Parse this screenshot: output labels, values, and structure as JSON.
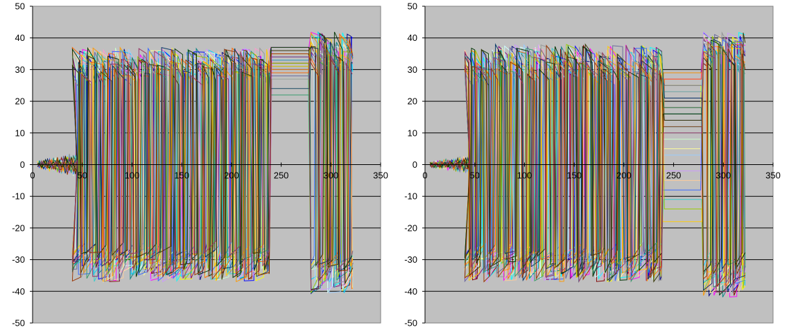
{
  "colors": {
    "plot_background": "#c0c0c0",
    "gridline": "#000000",
    "axis": "#000000",
    "series_palette": [
      "#00007f",
      "#ff00ff",
      "#ffff00",
      "#00ffff",
      "#7f007f",
      "#7f0000",
      "#007f7f",
      "#0000ff",
      "#00ccff",
      "#ccffff",
      "#ccffcc",
      "#ffff99",
      "#99ccff",
      "#ff99cc",
      "#cc99ff",
      "#ffcc99",
      "#3366ff",
      "#33cccc",
      "#99cc00",
      "#ffcc00",
      "#ff9900",
      "#ff6600",
      "#666699",
      "#969696",
      "#003366",
      "#339966",
      "#003300",
      "#333300",
      "#993300",
      "#993366",
      "#333399",
      "#333333"
    ]
  },
  "chart_data": [
    {
      "type": "line",
      "xlim": [
        0,
        350
      ],
      "ylim": [
        -50,
        50
      ],
      "x_ticks": [
        "0",
        "50",
        "100",
        "150",
        "200",
        "250",
        "300",
        "350"
      ],
      "y_ticks": [
        "50",
        "40",
        "30",
        "20",
        "10",
        "0",
        "-10",
        "-20",
        "-30",
        "-40",
        "-50"
      ],
      "grid": "horizontal",
      "legend": "none",
      "n_series": 30,
      "x_end": 322,
      "segments": [
        {
          "from": 0,
          "to": 40,
          "pattern": "small_oscillation",
          "amplitude": 4
        },
        {
          "from": 40,
          "to": 238,
          "pattern": "dense_oscillation",
          "range": [
            -37,
            37
          ]
        },
        {
          "from": 238,
          "to": 280,
          "pattern": "flat_levels",
          "levels": [
            37,
            36,
            35,
            34,
            33,
            32,
            31,
            30,
            29,
            28,
            27,
            24,
            22
          ]
        },
        {
          "from": 280,
          "to": 322,
          "pattern": "dense_oscillation",
          "range": [
            -41,
            42
          ]
        }
      ]
    },
    {
      "type": "line",
      "xlim": [
        0,
        350
      ],
      "ylim": [
        -50,
        50
      ],
      "x_ticks": [
        "0",
        "50",
        "100",
        "150",
        "200",
        "250",
        "300",
        "350"
      ],
      "y_ticks": [
        "50",
        "40",
        "30",
        "20",
        "10",
        "0",
        "-10",
        "-20",
        "-30",
        "-40",
        "-50"
      ],
      "grid": "horizontal",
      "legend": "none",
      "n_series": 30,
      "x_end": 322,
      "segments": [
        {
          "from": 0,
          "to": 40,
          "pattern": "small_oscillation",
          "amplitude": 3
        },
        {
          "from": 40,
          "to": 238,
          "pattern": "dense_oscillation",
          "range": [
            -37,
            38
          ]
        },
        {
          "from": 238,
          "to": 280,
          "pattern": "flat_levels",
          "levels": [
            29,
            27,
            25,
            23,
            21,
            18,
            16,
            14,
            12,
            10,
            8,
            5,
            3,
            0,
            -2,
            -5,
            -8,
            -11,
            -14,
            -18
          ]
        },
        {
          "from": 280,
          "to": 322,
          "pattern": "dense_oscillation",
          "range": [
            -42,
            42
          ]
        }
      ]
    }
  ]
}
